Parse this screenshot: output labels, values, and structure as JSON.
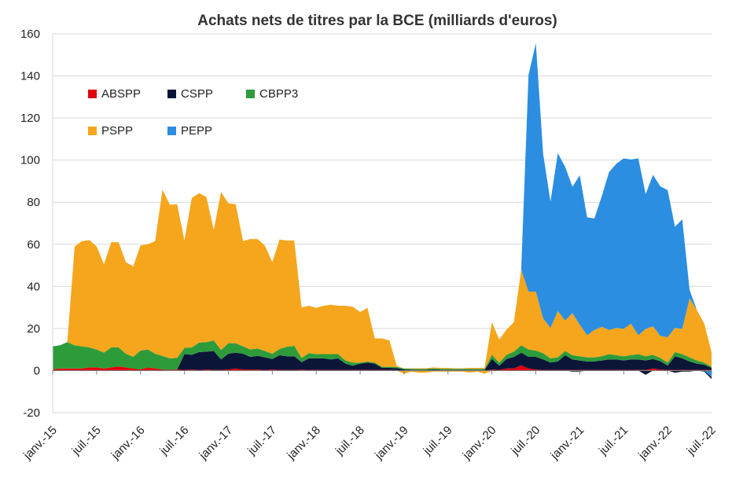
{
  "chart_data": {
    "type": "area",
    "stacked": true,
    "title": "Achats nets de titres par la BCE (milliards d'euros)",
    "xlabel": "",
    "ylabel": "",
    "ylim": [
      -20,
      160
    ],
    "yticks": [
      -20,
      0,
      20,
      40,
      60,
      80,
      100,
      120,
      140,
      160
    ],
    "grid": true,
    "legend_position": "top-left",
    "x_ticks": [
      "janv.-15",
      "juil.-15",
      "janv.-16",
      "juil.-16",
      "janv.-17",
      "juil.-17",
      "janv.-18",
      "juil.-18",
      "janv.-19",
      "juil.-19",
      "janv.-20",
      "juil.-20",
      "janv.-21",
      "juil.-21",
      "janv.-22",
      "juil.-22"
    ],
    "months_count": 91,
    "series": [
      {
        "name": "ABSPP",
        "color": "#e3000f",
        "values": [
          0.5,
          1.0,
          1.0,
          1.0,
          1.0,
          1.5,
          1.5,
          1.0,
          1.5,
          2.0,
          1.5,
          1.0,
          0.5,
          1.5,
          1.0,
          0.5,
          0.3,
          0.5,
          0.3,
          0.5,
          0.3,
          0.5,
          0.3,
          0.3,
          0.5,
          1.0,
          0.5,
          0.5,
          0.5,
          0.3,
          0.5,
          0.3,
          0.3,
          0.3,
          0.5,
          0.3,
          0.3,
          0.3,
          0.3,
          0.3,
          0.3,
          0.3,
          0.3,
          0.3,
          0.3,
          0.3,
          0.3,
          0.2,
          0.0,
          0.0,
          0.0,
          0.0,
          0.0,
          0.0,
          0.0,
          0.0,
          0.0,
          0.0,
          0.0,
          0.0,
          0.5,
          0.3,
          1.0,
          1.0,
          2.5,
          1.0,
          0.5,
          0.3,
          0.3,
          0.3,
          0.3,
          0.3,
          0.3,
          0.3,
          0.3,
          0.3,
          0.3,
          0.3,
          0.3,
          0.3,
          0.3,
          0.3,
          1.0,
          0.5,
          0.3,
          0.3,
          0.3,
          0.3,
          0.3,
          0.3,
          0.3
        ]
      },
      {
        "name": "CSPP",
        "color": "#0a1538",
        "values": [
          0,
          0,
          0,
          0,
          0,
          0,
          0,
          0,
          0,
          0,
          0,
          0,
          0,
          0,
          0,
          0,
          0,
          0,
          7.5,
          7.0,
          8.5,
          8.5,
          9.0,
          5.0,
          7.5,
          7.5,
          7.5,
          6.0,
          6.5,
          6.0,
          5.0,
          7.0,
          6.5,
          6.5,
          3.5,
          5.5,
          5.5,
          5.5,
          5.0,
          5.5,
          3.0,
          2.0,
          3.0,
          3.5,
          3.0,
          1.0,
          1.0,
          1.0,
          0.5,
          0.3,
          0.3,
          0.3,
          0.5,
          0.3,
          0.3,
          0.3,
          0.3,
          0.3,
          0.3,
          0.3,
          5.0,
          2.0,
          4.5,
          5.5,
          6.0,
          5.5,
          6.0,
          5.0,
          3.5,
          4.0,
          7.0,
          5.0,
          4.5,
          4.0,
          4.0,
          4.5,
          5.0,
          5.0,
          4.5,
          5.0,
          5.0,
          4.5,
          4.5,
          4.0,
          2.0,
          6.5,
          5.5,
          4.0,
          3.0,
          2.5,
          1.0
        ]
      },
      {
        "name": "CBPP3",
        "color": "#2e9b3b",
        "values": [
          11.0,
          11.0,
          12.5,
          11.0,
          10.5,
          9.5,
          8.5,
          7.5,
          9.5,
          9.0,
          6.5,
          5.5,
          9.0,
          8.5,
          7.0,
          6.5,
          5.5,
          5.5,
          3.0,
          3.5,
          4.5,
          4.5,
          5.0,
          4.5,
          5.0,
          4.5,
          3.5,
          3.5,
          3.5,
          3.0,
          2.5,
          3.0,
          4.5,
          5.0,
          2.0,
          2.5,
          2.0,
          2.0,
          2.5,
          2.0,
          1.5,
          1.5,
          0.5,
          0.5,
          0.5,
          0.5,
          0.5,
          0.5,
          0.5,
          0.5,
          0.5,
          0.5,
          0.5,
          0.5,
          0.5,
          0.5,
          0.5,
          0.5,
          0.5,
          0.5,
          2.0,
          1.5,
          2.0,
          2.5,
          3.5,
          3.5,
          3.0,
          3.0,
          2.0,
          2.0,
          2.0,
          2.0,
          2.0,
          2.0,
          2.0,
          2.0,
          2.5,
          2.0,
          2.0,
          2.0,
          2.5,
          2.0,
          2.0,
          1.5,
          1.5,
          2.0,
          2.0,
          2.0,
          1.5,
          1.0,
          0.5
        ]
      },
      {
        "name": "PSPP",
        "color": "#f5a61d",
        "values": [
          0,
          0,
          0,
          47.0,
          50.0,
          51.0,
          49.0,
          42.0,
          50.0,
          50.0,
          43.5,
          43.0,
          50.0,
          50.0,
          53.5,
          79.0,
          73.0,
          73.0,
          51.0,
          71.0,
          71.0,
          69.0,
          52.5,
          75.0,
          66.5,
          66.0,
          50.0,
          52.5,
          52.0,
          50.0,
          43.5,
          52.0,
          50.5,
          50.0,
          24.0,
          22.5,
          22.0,
          23.0,
          23.5,
          23.0,
          26.0,
          26.5,
          24.0,
          25.5,
          11.5,
          13.5,
          12.5,
          0.5,
          0.0,
          0.3,
          0.3,
          0.3,
          0.5,
          0.5,
          0.5,
          0.3,
          0.3,
          0.5,
          0.5,
          0.5,
          15.5,
          11.0,
          12.0,
          14.0,
          36.0,
          27.5,
          28.0,
          16.5,
          14.5,
          22.0,
          14.5,
          20.0,
          15.0,
          10.5,
          13.0,
          14.0,
          11.5,
          13.0,
          13.0,
          15.0,
          9.0,
          13.0,
          13.5,
          10.5,
          12.0,
          11.5,
          12.0,
          28.0,
          24.0,
          18.5,
          7.0
        ]
      },
      {
        "name": "PEPP",
        "color": "#2b8ee0",
        "values": [
          0,
          0,
          0,
          0,
          0,
          0,
          0,
          0,
          0,
          0,
          0,
          0,
          0,
          0,
          0,
          0,
          0,
          0,
          0,
          0,
          0,
          0,
          0,
          0,
          0,
          0,
          0,
          0,
          0,
          0,
          0,
          0,
          0,
          0,
          0,
          0,
          0,
          0,
          0,
          0,
          0,
          0,
          0,
          0,
          0,
          0,
          0,
          0,
          0,
          0,
          0,
          0,
          0,
          0,
          0,
          0,
          0,
          0,
          0,
          0,
          0,
          0,
          0,
          0,
          0,
          103.0,
          118.0,
          78.0,
          60.0,
          75.0,
          73.0,
          60.0,
          71.0,
          56.0,
          53.0,
          62.0,
          75.0,
          78.0,
          81.0,
          78.0,
          84.0,
          64.0,
          72.0,
          71.0,
          70.0,
          48.0,
          52.0,
          4.0,
          0.0,
          0.0,
          0.0
        ]
      }
    ],
    "negative_series": [
      {
        "name": "PEPP",
        "color": "#2b8ee0",
        "values": [
          0,
          0,
          0,
          0,
          0,
          0,
          0,
          0,
          0,
          0,
          0,
          0,
          0,
          0,
          0,
          0,
          0,
          0,
          0,
          0,
          0,
          0,
          0,
          0,
          0,
          0,
          0,
          0,
          0,
          0,
          0,
          0,
          0,
          0,
          0,
          0,
          0,
          0,
          0,
          0,
          0,
          0,
          0,
          0,
          0,
          0,
          0,
          0,
          0,
          0,
          0,
          0,
          0,
          0,
          0,
          0,
          0,
          0,
          0,
          0,
          0,
          0,
          0,
          0,
          0,
          0,
          0,
          0,
          0,
          0,
          0,
          0,
          0,
          0,
          0,
          0,
          0,
          0,
          0,
          0,
          0,
          0,
          0,
          0,
          0,
          0,
          0,
          0,
          0,
          0,
          -3.0
        ]
      },
      {
        "name": "PSPP",
        "color": "#f5a61d",
        "values": [
          0,
          0,
          0,
          0,
          0,
          0,
          0,
          0,
          0,
          0,
          0,
          0,
          0,
          0,
          0,
          0,
          0,
          0,
          0,
          0,
          0,
          0,
          0,
          0,
          0,
          0,
          0,
          0,
          0,
          0,
          0,
          0,
          0,
          0,
          0,
          0,
          0,
          0,
          0,
          0,
          0,
          0,
          0,
          0,
          0,
          0,
          0,
          0,
          -1.5,
          -0.5,
          -1.0,
          -1.0,
          -0.5,
          -0.5,
          -0.5,
          -0.5,
          -0.5,
          -1.0,
          -0.5,
          -1.5,
          0,
          0,
          0,
          0,
          0,
          0,
          0,
          0,
          0,
          0,
          0,
          0,
          0,
          0,
          0,
          0,
          0,
          0,
          0,
          0,
          0,
          0,
          0,
          0,
          0,
          0,
          0,
          0,
          0,
          0,
          0
        ]
      },
      {
        "name": "CSPP",
        "color": "#0a1538",
        "values": [
          0,
          0,
          0,
          0,
          0,
          0,
          0,
          0,
          0,
          0,
          0,
          0,
          0,
          0,
          0,
          0,
          0,
          0,
          0,
          0,
          0,
          0,
          0,
          0,
          0,
          0,
          0,
          0,
          0,
          0,
          0,
          0,
          0,
          0,
          0,
          0,
          0,
          0,
          0,
          0,
          0,
          0,
          0,
          0,
          0,
          0,
          0,
          0,
          0,
          0,
          0,
          0,
          0,
          0,
          0,
          0,
          0,
          0,
          0,
          0,
          0,
          0,
          0,
          0,
          0,
          0,
          0,
          0,
          0,
          0,
          0,
          -0.5,
          -0.5,
          0,
          0,
          0,
          0,
          0,
          0,
          0,
          0,
          -2.0,
          0,
          0,
          0,
          -1.0,
          -0.5,
          -0.5,
          0,
          -0.5,
          -1.0
        ]
      }
    ]
  }
}
